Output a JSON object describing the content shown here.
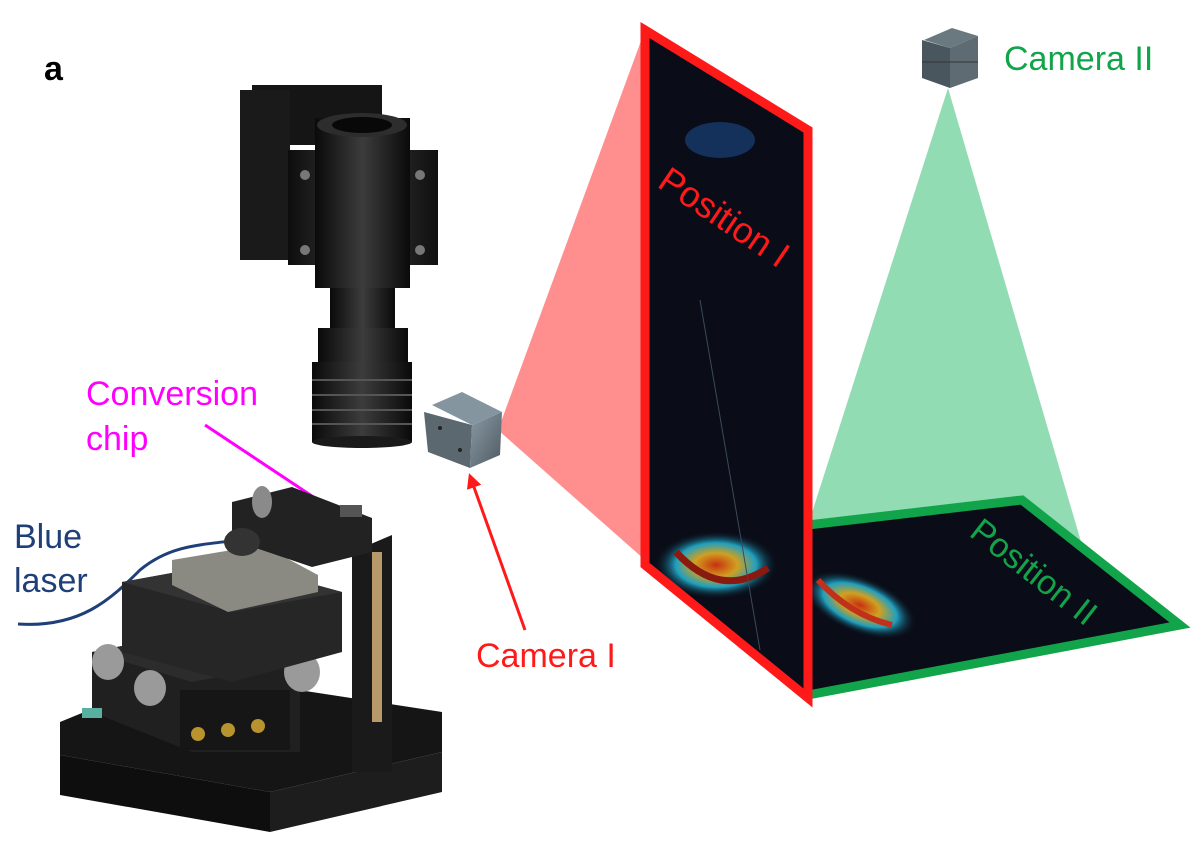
{
  "panel_label": "a",
  "labels": {
    "camera_1": "Camera I",
    "camera_2": "Camera II",
    "position_1": "Position I",
    "position_2": "Position II",
    "conversion_chip_line1": "Conversion",
    "conversion_chip_line2": "chip",
    "blue_laser_line1": "Blue",
    "blue_laser_line2": "laser"
  },
  "colors": {
    "camera_1": "#ff1a1a",
    "camera_2": "#12a44a",
    "conversion_chip": "#ff00ff",
    "blue_laser": "#1f3f78",
    "frustum_1": "#ff7b7b",
    "frustum_2": "#7fd6a6",
    "screen": "#0a0d18",
    "hardware": "#1c1c1c"
  },
  "icons": {
    "microscope_objective": "microscope-objective-icon",
    "camera_cube": "camera-cube-icon",
    "translation_stage": "translation-stage-icon"
  }
}
